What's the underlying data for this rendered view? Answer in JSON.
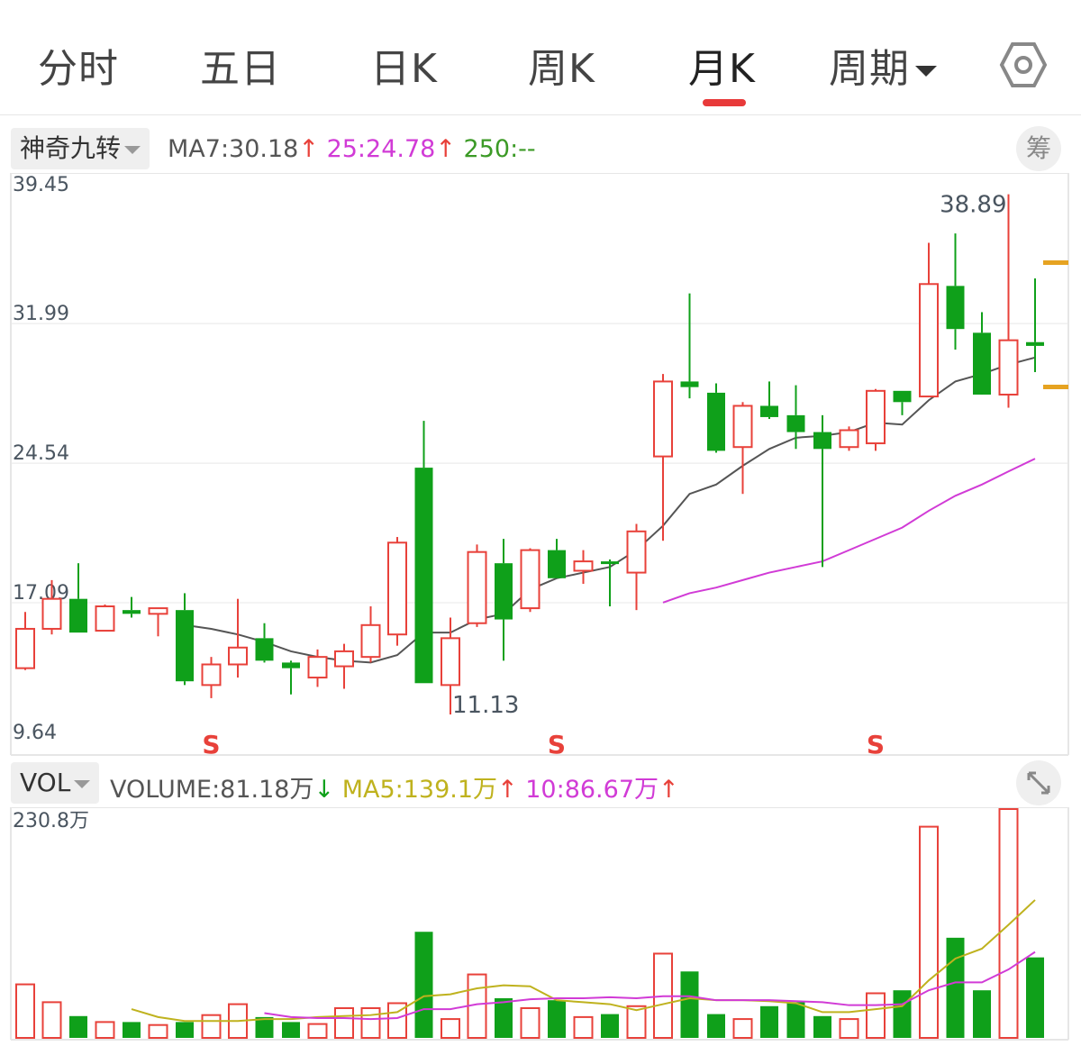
{
  "tabs": [
    {
      "label": "分时"
    },
    {
      "label": "五日"
    },
    {
      "label": "日K"
    },
    {
      "label": "周K"
    },
    {
      "label": "月K",
      "active": true
    },
    {
      "label": "周期"
    }
  ],
  "settings_icon": "hexagon-settings-icon",
  "indicator": {
    "selector": "神奇九转",
    "ma7": "MA7:30.18",
    "ma25": "25:24.78",
    "ma250": "250:--",
    "chip_button": "筹"
  },
  "volume_indicator": {
    "selector": "VOL",
    "volume": "VOLUME:81.18万",
    "ma5": "MA5:139.1万",
    "ma10": "10:86.67万",
    "max_label": "230.8万",
    "expand_icon": "expand-arrows-icon"
  },
  "colors": {
    "up": "#e8413a",
    "down": "#0fa01a",
    "ma7": "#555555",
    "ma25": "#d13bd6",
    "vol_ma5": "#bfb21e",
    "vol_ma10": "#d13bd6",
    "marker": "#e6a321"
  },
  "chart_data": {
    "type": "candlestick",
    "price_axis": [
      "39.45",
      "31.99",
      "24.54",
      "17.09",
      "9.64"
    ],
    "ylim": [
      9.64,
      39.45
    ],
    "annotations": {
      "high": "38.89",
      "low": "11.13"
    },
    "signal_label": "S",
    "signals_at": [
      7,
      20,
      32
    ],
    "candles": [
      {
        "o": 13.6,
        "h": 16.6,
        "l": 13.5,
        "c": 15.7,
        "v": 54
      },
      {
        "o": 15.7,
        "h": 18.3,
        "l": 15.4,
        "c": 17.3,
        "v": 36
      },
      {
        "o": 17.3,
        "h": 19.2,
        "l": 15.5,
        "c": 15.5,
        "v": 22
      },
      {
        "o": 15.6,
        "h": 17.0,
        "l": 15.6,
        "c": 16.9,
        "v": 16
      },
      {
        "o": 16.7,
        "h": 17.4,
        "l": 16.3,
        "c": 16.5,
        "v": 16
      },
      {
        "o": 16.5,
        "h": 16.8,
        "l": 15.3,
        "c": 16.8,
        "v": 13
      },
      {
        "o": 16.7,
        "h": 17.6,
        "l": 12.7,
        "c": 12.9,
        "v": 16
      },
      {
        "o": 12.7,
        "h": 14.2,
        "l": 12.0,
        "c": 13.8,
        "v": 23
      },
      {
        "o": 13.8,
        "h": 17.3,
        "l": 13.1,
        "c": 14.7,
        "v": 34
      },
      {
        "o": 15.2,
        "h": 16.0,
        "l": 13.9,
        "c": 14.0,
        "v": 21
      },
      {
        "o": 13.9,
        "h": 14.0,
        "l": 12.2,
        "c": 13.6,
        "v": 16
      },
      {
        "o": 13.1,
        "h": 14.6,
        "l": 12.6,
        "c": 14.2,
        "v": 14
      },
      {
        "o": 13.7,
        "h": 14.9,
        "l": 12.5,
        "c": 14.5,
        "v": 30
      },
      {
        "o": 14.2,
        "h": 16.9,
        "l": 13.9,
        "c": 15.9,
        "v": 30
      },
      {
        "o": 15.4,
        "h": 20.6,
        "l": 14.8,
        "c": 20.3,
        "v": 35
      },
      {
        "o": 24.3,
        "h": 26.8,
        "l": 12.8,
        "c": 12.8,
        "v": 107
      },
      {
        "o": 12.7,
        "h": 16.3,
        "l": 11.13,
        "c": 15.2,
        "v": 19
      },
      {
        "o": 16.0,
        "h": 20.2,
        "l": 15.8,
        "c": 19.8,
        "v": 64
      },
      {
        "o": 19.2,
        "h": 20.5,
        "l": 14.0,
        "c": 16.2,
        "v": 40
      },
      {
        "o": 16.8,
        "h": 20.0,
        "l": 16.6,
        "c": 19.9,
        "v": 30
      },
      {
        "o": 19.9,
        "h": 20.5,
        "l": 18.4,
        "c": 18.4,
        "v": 38
      },
      {
        "o": 18.8,
        "h": 19.9,
        "l": 18.1,
        "c": 19.3,
        "v": 21
      },
      {
        "o": 19.3,
        "h": 19.4,
        "l": 16.9,
        "c": 19.2,
        "v": 24
      },
      {
        "o": 18.7,
        "h": 21.3,
        "l": 16.7,
        "c": 20.9,
        "v": 32
      },
      {
        "o": 24.9,
        "h": 29.3,
        "l": 20.4,
        "c": 28.9,
        "v": 85
      },
      {
        "o": 28.9,
        "h": 33.6,
        "l": 28.0,
        "c": 28.6,
        "v": 67
      },
      {
        "o": 28.3,
        "h": 28.8,
        "l": 25.1,
        "c": 25.2,
        "v": 24
      },
      {
        "o": 25.4,
        "h": 27.8,
        "l": 22.9,
        "c": 27.6,
        "v": 19
      },
      {
        "o": 27.6,
        "h": 28.9,
        "l": 26.9,
        "c": 27.0,
        "v": 32
      },
      {
        "o": 27.1,
        "h": 28.7,
        "l": 25.3,
        "c": 26.2,
        "v": 36
      },
      {
        "o": 26.2,
        "h": 27.1,
        "l": 19.0,
        "c": 25.3,
        "v": 22
      },
      {
        "o": 25.4,
        "h": 26.5,
        "l": 25.2,
        "c": 26.3,
        "v": 19
      },
      {
        "o": 25.6,
        "h": 28.5,
        "l": 25.2,
        "c": 28.4,
        "v": 45
      },
      {
        "o": 28.4,
        "h": 28.4,
        "l": 27.1,
        "c": 27.8,
        "v": 48
      },
      {
        "o": 28.1,
        "h": 36.3,
        "l": 28.1,
        "c": 34.1,
        "v": 213
      },
      {
        "o": 34.0,
        "h": 36.8,
        "l": 30.6,
        "c": 31.7,
        "v": 101
      },
      {
        "o": 31.5,
        "h": 32.6,
        "l": 28.3,
        "c": 28.2,
        "v": 48
      },
      {
        "o": 28.2,
        "h": 38.89,
        "l": 27.5,
        "c": 31.1,
        "v": 230.8
      },
      {
        "o": 31.0,
        "h": 34.4,
        "l": 29.4,
        "c": 30.8,
        "v": 81.18
      }
    ],
    "ma7": [
      null,
      null,
      null,
      null,
      null,
      null,
      15.9,
      15.7,
      15.4,
      15.0,
      14.5,
      14.2,
      14.0,
      13.9,
      14.3,
      15.5,
      15.5,
      16.2,
      16.5,
      17.8,
      18.4,
      18.7,
      19.0,
      19.9,
      21.2,
      22.9,
      23.4,
      24.4,
      25.3,
      25.9,
      26.0,
      26.2,
      26.7,
      26.6,
      27.9,
      28.9,
      29.3,
      29.8,
      30.18
    ],
    "ma25": [
      null,
      null,
      null,
      null,
      null,
      null,
      null,
      null,
      null,
      null,
      null,
      null,
      null,
      null,
      null,
      null,
      null,
      null,
      null,
      null,
      null,
      null,
      null,
      null,
      17.1,
      17.6,
      17.9,
      18.3,
      18.7,
      19.0,
      19.3,
      19.9,
      20.5,
      21.1,
      22.0,
      22.8,
      23.4,
      24.1,
      24.78
    ],
    "vol_ma5": [
      null,
      null,
      null,
      null,
      29,
      21,
      17,
      17,
      17,
      19,
      19,
      21,
      22,
      23,
      26,
      42,
      44,
      50,
      53,
      52,
      38,
      36,
      34,
      28,
      34,
      40,
      38,
      38,
      37,
      35,
      26,
      26,
      29,
      32,
      58,
      80,
      90,
      114,
      139.1
    ],
    "vol_ma10": [
      null,
      null,
      null,
      null,
      null,
      null,
      null,
      null,
      null,
      25,
      21,
      20,
      20,
      19,
      20,
      29,
      29,
      34,
      36,
      39,
      40,
      40,
      41,
      40,
      42,
      42,
      38,
      38,
      38,
      37,
      36,
      33,
      33,
      34,
      48,
      56,
      56,
      69,
      86.67
    ]
  }
}
